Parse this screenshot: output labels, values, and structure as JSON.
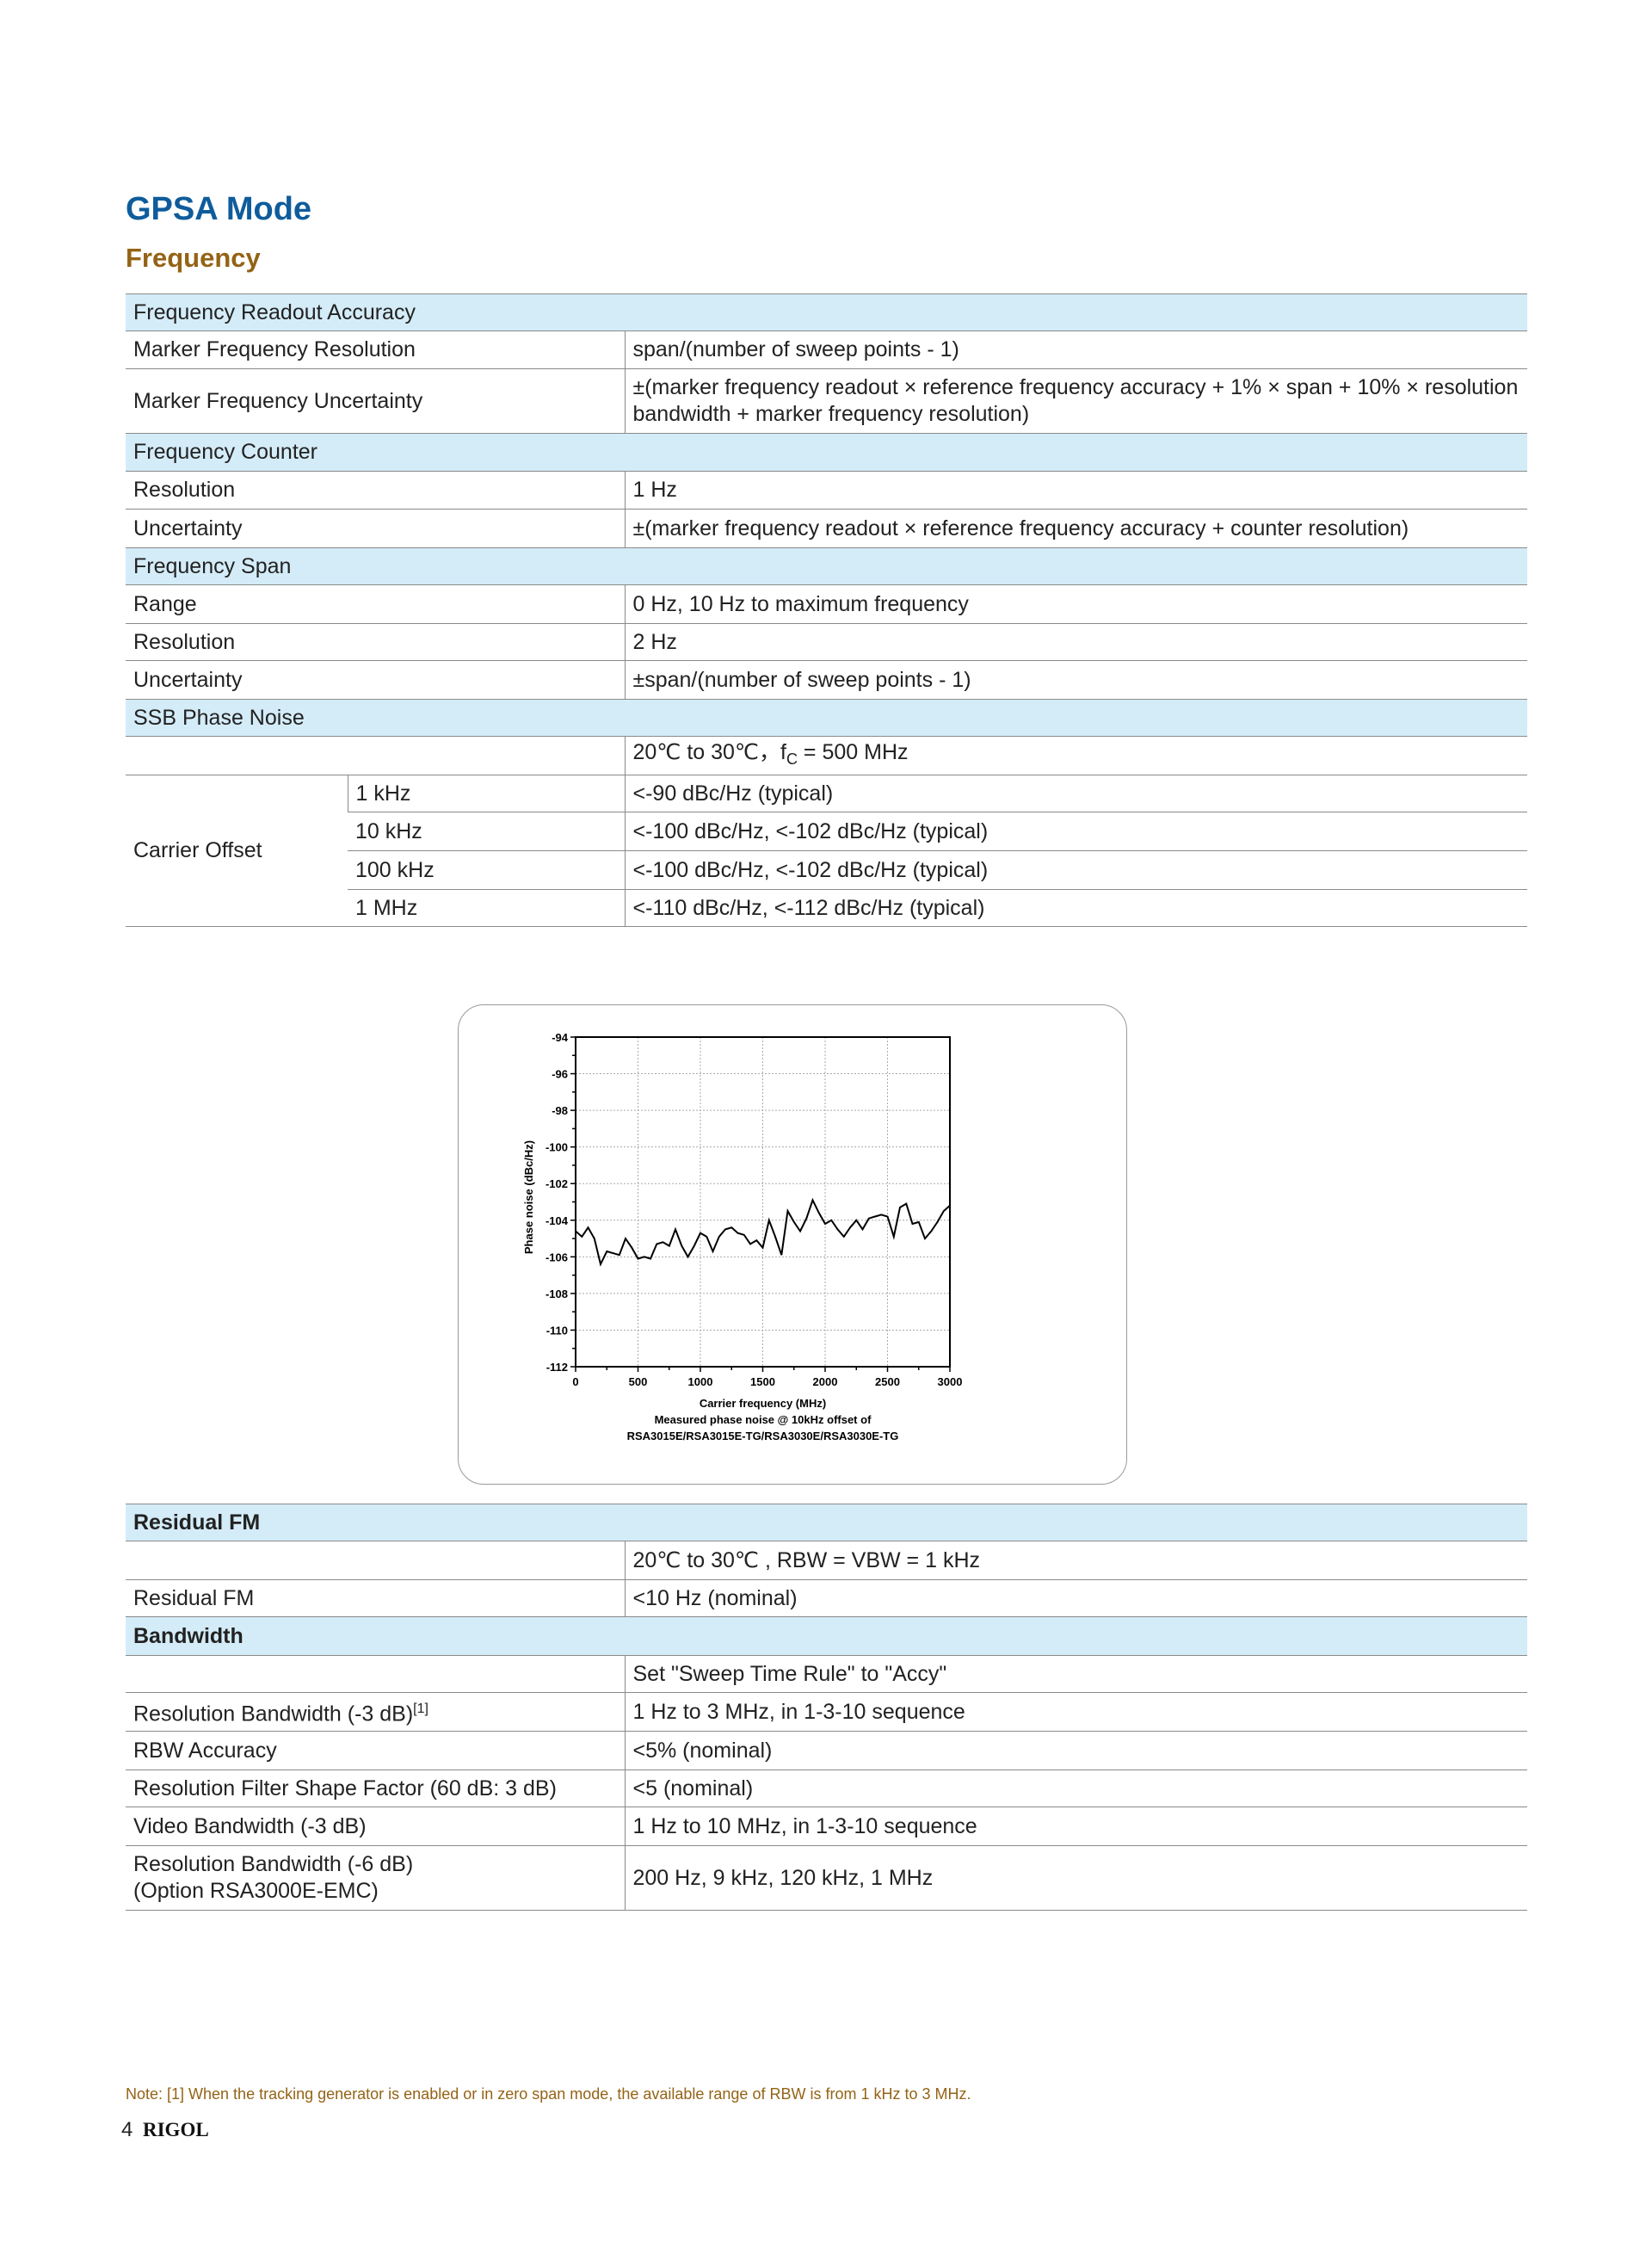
{
  "title": "GPSA Mode",
  "subtitle": "Frequency",
  "table1": {
    "s1": "Frequency Readout Accuracy",
    "r1": [
      "Marker Frequency Resolution",
      "span/(number of sweep points - 1)"
    ],
    "r2": [
      "Marker Frequency Uncertainty",
      "±(marker frequency readout × reference frequency accuracy + 1% × span + 10% × resolution bandwidth + marker frequency resolution)"
    ],
    "s2": "Frequency Counter",
    "r3": [
      "Resolution",
      "1 Hz"
    ],
    "r4": [
      "Uncertainty",
      "±(marker frequency readout × reference frequency accuracy + counter resolution)"
    ],
    "s3": "Frequency Span",
    "r5": [
      "Range",
      "0 Hz, 10 Hz to maximum frequency"
    ],
    "r6": [
      "Resolution",
      "2 Hz"
    ],
    "r7": [
      "Uncertainty",
      "±span/(number of sweep points - 1)"
    ],
    "s4": "SSB Phase Noise",
    "cond_pre": "20℃ to 30℃，f",
    "cond_sub": "C",
    "cond_post": " = 500 MHz",
    "carrier_label": "Carrier Offset",
    "offsets": [
      [
        "1 kHz",
        "<-90 dBc/Hz (typical)"
      ],
      [
        "10 kHz",
        "<-100 dBc/Hz, <-102 dBc/Hz (typical)"
      ],
      [
        "100 kHz",
        "<-100 dBc/Hz, <-102 dBc/Hz (typical)"
      ],
      [
        "1 MHz",
        "<-110 dBc/Hz, <-112 dBc/Hz (typical)"
      ]
    ]
  },
  "chart_data": {
    "type": "line",
    "xlabel": "Carrier frequency (MHz)",
    "ylabel": "Phase noise (dBc/Hz)",
    "caption": [
      "Measured phase noise @ 10kHz offset of",
      "RSA3015E/RSA3015E-TG/RSA3030E/RSA3030E-TG"
    ],
    "xlim": [
      0,
      3000
    ],
    "ylim": [
      -112,
      -94
    ],
    "xticks": [
      "0",
      "500",
      "1000",
      "1500",
      "2000",
      "2500",
      "3000"
    ],
    "yticks": [
      "-94",
      "-96",
      "-98",
      "-100",
      "-102",
      "-104",
      "-106",
      "-108",
      "-110",
      "-112"
    ],
    "grid": true,
    "x": [
      0,
      50,
      100,
      150,
      200,
      250,
      300,
      350,
      400,
      450,
      500,
      550,
      600,
      650,
      700,
      750,
      800,
      850,
      900,
      950,
      1000,
      1050,
      1100,
      1150,
      1200,
      1250,
      1300,
      1350,
      1400,
      1450,
      1500,
      1550,
      1600,
      1650,
      1700,
      1750,
      1800,
      1850,
      1900,
      1950,
      2000,
      2050,
      2100,
      2150,
      2200,
      2250,
      2300,
      2350,
      2400,
      2450,
      2500,
      2550,
      2600,
      2650,
      2700,
      2750,
      2800,
      2850,
      2900,
      2950,
      3000
    ],
    "y": [
      -104.6,
      -104.9,
      -104.4,
      -105.0,
      -106.4,
      -105.7,
      -105.8,
      -105.9,
      -105.0,
      -105.5,
      -106.1,
      -106.0,
      -106.1,
      -105.3,
      -105.2,
      -105.4,
      -104.5,
      -105.4,
      -106.0,
      -105.4,
      -104.7,
      -104.9,
      -105.7,
      -104.9,
      -104.5,
      -104.4,
      -104.7,
      -104.8,
      -105.3,
      -105.1,
      -105.5,
      -104.0,
      -104.9,
      -105.9,
      -103.5,
      -104.1,
      -104.6,
      -103.9,
      -102.9,
      -103.6,
      -104.2,
      -104.0,
      -104.5,
      -104.9,
      -104.4,
      -104.0,
      -104.5,
      -103.9,
      -103.8,
      -103.7,
      -103.8,
      -104.9,
      -103.3,
      -103.1,
      -104.2,
      -104.1,
      -105.0,
      -104.6,
      -104.1,
      -103.5,
      -103.2
    ]
  },
  "table2": {
    "s1": "Residual FM",
    "cond1": "20℃ to 30℃ , RBW = VBW = 1 kHz",
    "r1": [
      "Residual FM",
      "<10 Hz (nominal)"
    ],
    "s2": "Bandwidth",
    "cond2": "Set \"Sweep Time Rule\" to \"Accy\"",
    "r2": [
      "Resolution Bandwidth (-3 dB)",
      "[1]",
      "1 Hz to 3 MHz, in 1-3-10 sequence"
    ],
    "r3": [
      "RBW Accuracy",
      "<5% (nominal)"
    ],
    "r4": [
      "Resolution Filter Shape Factor (60 dB: 3 dB)",
      "<5 (nominal)"
    ],
    "r5": [
      "Video Bandwidth (-3 dB)",
      "1 Hz to 10 MHz, in 1-3-10 sequence"
    ],
    "r6": [
      "Resolution Bandwidth (-6 dB)",
      "(Option RSA3000E-EMC)",
      "200 Hz, 9 kHz, 120 kHz, 1 MHz"
    ]
  },
  "note": "Note: [1] When the tracking generator is enabled or in zero span mode, the available range of RBW is from 1 kHz to 3 MHz.",
  "footer": {
    "page": "4",
    "logo": "RIGOL"
  },
  "colors": {
    "heading": "#0f5c9c",
    "subheading": "#946316",
    "section_bg": "#d4ecf8"
  }
}
